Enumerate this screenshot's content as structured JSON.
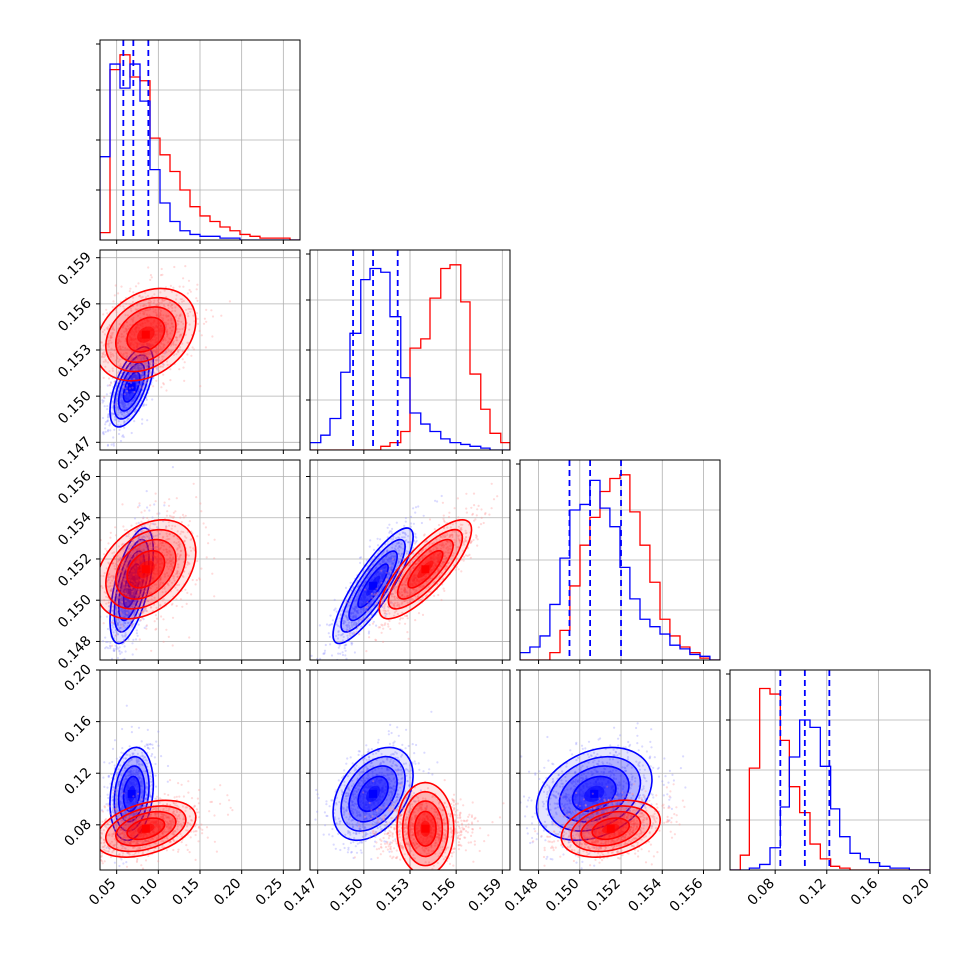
{
  "chart_data": {
    "type": "corner",
    "grid": true,
    "colors": {
      "series_a": "#ff0000",
      "series_b": "#0000ff"
    },
    "variables": [
      {
        "range": [
          0.03,
          0.27
        ],
        "ticks": [
          0.05,
          0.1,
          0.15,
          0.2,
          0.25
        ],
        "tick_labels": [
          "0.05",
          "0.10",
          "0.15",
          "0.20",
          "0.25"
        ]
      },
      {
        "range": [
          0.1465,
          0.1595
        ],
        "ticks": [
          0.147,
          0.15,
          0.153,
          0.156,
          0.159
        ],
        "tick_labels": [
          "0.147",
          "0.150",
          "0.153",
          "0.156",
          "0.159"
        ]
      },
      {
        "range": [
          0.1471,
          0.1568
        ],
        "ticks": [
          0.148,
          0.15,
          0.152,
          0.154,
          0.156
        ],
        "tick_labels": [
          "0.148",
          "0.150",
          "0.152",
          "0.154",
          "0.156"
        ]
      },
      {
        "range": [
          0.045,
          0.2
        ],
        "ticks": [
          0.08,
          0.12,
          0.16,
          0.2
        ],
        "tick_labels": [
          "0.08",
          "0.12",
          "0.16",
          "0.20"
        ]
      }
    ],
    "quantile_lines_blue": [
      [
        0.058,
        0.07,
        0.088
      ],
      [
        0.1493,
        0.1506,
        0.1522
      ],
      [
        0.1495,
        0.1505,
        0.152
      ],
      [
        0.084,
        0.103,
        0.122
      ]
    ],
    "histograms": [
      {
        "bins": [
          0.03,
          0.042,
          0.054,
          0.066,
          0.078,
          0.09,
          0.102,
          0.114,
          0.126,
          0.138,
          0.15,
          0.162,
          0.174,
          0.186,
          0.198,
          0.21,
          0.222,
          0.234,
          0.246,
          0.258,
          0.27
        ],
        "series_a": [
          0.04,
          0.92,
          1.0,
          0.88,
          0.86,
          0.55,
          0.46,
          0.37,
          0.27,
          0.18,
          0.13,
          0.1,
          0.07,
          0.05,
          0.03,
          0.02,
          0.01,
          0.01,
          0.01,
          0.0
        ],
        "series_b": [
          0.45,
          0.95,
          0.82,
          0.95,
          0.75,
          0.38,
          0.2,
          0.1,
          0.05,
          0.03,
          0.02,
          0.02,
          0.01,
          0.01,
          0.0,
          0.0,
          0.0,
          0.0,
          0.0,
          0.0
        ]
      },
      {
        "bins": [
          0.1465,
          0.1472,
          0.1478,
          0.1485,
          0.1491,
          0.1498,
          0.1504,
          0.1511,
          0.1517,
          0.1524,
          0.153,
          0.1537,
          0.1543,
          0.155,
          0.1556,
          0.1563,
          0.1569,
          0.1576,
          0.1582,
          0.1589,
          0.1595
        ],
        "series_a": [
          0.0,
          0.0,
          0.0,
          0.0,
          0.0,
          0.0,
          0.0,
          0.02,
          0.04,
          0.1,
          0.55,
          0.6,
          0.82,
          0.98,
          1.0,
          0.8,
          0.41,
          0.22,
          0.09,
          0.04
        ],
        "series_b": [
          0.04,
          0.08,
          0.17,
          0.42,
          0.63,
          0.92,
          0.98,
          0.96,
          0.72,
          0.39,
          0.2,
          0.14,
          0.1,
          0.06,
          0.04,
          0.03,
          0.02,
          0.01,
          0.0,
          0.0
        ]
      },
      {
        "bins": [
          0.1471,
          0.14758,
          0.14807,
          0.14855,
          0.14904,
          0.14952,
          0.15001,
          0.15049,
          0.15098,
          0.15146,
          0.15195,
          0.15243,
          0.15292,
          0.1534,
          0.15389,
          0.15437,
          0.15486,
          0.15534,
          0.15583,
          0.15631,
          0.1568
        ],
        "series_a": [
          0.0,
          0.0,
          0.0,
          0.04,
          0.16,
          0.4,
          0.62,
          0.77,
          0.91,
          0.98,
          1.0,
          0.8,
          0.62,
          0.42,
          0.22,
          0.13,
          0.07,
          0.04,
          0.01,
          0.0
        ],
        "series_b": [
          0.04,
          0.07,
          0.13,
          0.3,
          0.55,
          0.81,
          0.84,
          0.97,
          0.82,
          0.72,
          0.5,
          0.33,
          0.22,
          0.18,
          0.14,
          0.08,
          0.06,
          0.03,
          0.02,
          0.0
        ]
      },
      {
        "bins": [
          0.045,
          0.053,
          0.06,
          0.068,
          0.076,
          0.084,
          0.091,
          0.099,
          0.107,
          0.115,
          0.123,
          0.13,
          0.138,
          0.146,
          0.153,
          0.161,
          0.169,
          0.177,
          0.184,
          0.192,
          0.2
        ],
        "series_a": [
          0.0,
          0.08,
          0.55,
          0.98,
          0.95,
          0.7,
          0.45,
          0.31,
          0.14,
          0.06,
          0.02,
          0.01,
          0.0,
          0.0,
          0.0,
          0.0,
          0.0,
          0.0,
          0.0,
          0.0
        ],
        "series_b": [
          0.0,
          0.0,
          0.01,
          0.03,
          0.12,
          0.34,
          0.61,
          0.81,
          0.77,
          0.56,
          0.33,
          0.18,
          0.09,
          0.06,
          0.04,
          0.02,
          0.01,
          0.01,
          0.0,
          0.0
        ]
      }
    ],
    "pair_distributions": {
      "series_a": {
        "mean": [
          0.085,
          0.154,
          0.1515,
          0.077
        ],
        "std": [
          0.03,
          0.0015,
          0.0012,
          0.011
        ],
        "corr": [
          [
            1.0,
            0.3,
            0.35,
            0.4
          ],
          [
            0.3,
            1.0,
            0.8,
            0.0
          ],
          [
            0.35,
            0.8,
            1.0,
            0.3
          ],
          [
            0.4,
            0.0,
            0.3,
            1.0
          ]
        ]
      },
      "series_b": {
        "mean": [
          0.068,
          0.1506,
          0.1507,
          0.104
        ],
        "std": [
          0.013,
          0.0013,
          0.0014,
          0.018
        ],
        "corr": [
          [
            1.0,
            0.6,
            0.6,
            0.2
          ],
          [
            0.6,
            1.0,
            0.85,
            0.4
          ],
          [
            0.6,
            0.85,
            1.0,
            0.3
          ],
          [
            0.2,
            0.4,
            0.3,
            1.0
          ]
        ]
      }
    }
  }
}
